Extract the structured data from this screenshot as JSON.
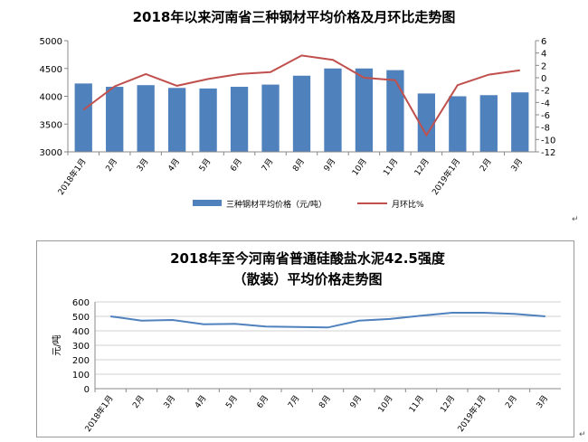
{
  "chart_data": [
    {
      "type": "bar+line",
      "title": "2018年以来河南省三种钢材平均价格及月环比走势图",
      "categories": [
        "2018年1月",
        "2月",
        "3月",
        "4月",
        "5月",
        "6月",
        "7月",
        "8月",
        "9月",
        "10月",
        "11月",
        "12月",
        "2019年1月",
        "2月",
        "3月"
      ],
      "series": [
        {
          "name": "三种钢材平均价格（元/吨）",
          "kind": "bar",
          "axis": "left",
          "color": "#4F81BD",
          "values": [
            4230,
            4170,
            4200,
            4150,
            4140,
            4170,
            4210,
            4370,
            4500,
            4500,
            4470,
            4050,
            4000,
            4020,
            4070
          ]
        },
        {
          "name": "月环比%",
          "kind": "line",
          "axis": "right",
          "color": "#C0504D",
          "values": [
            -5.2,
            -1.4,
            0.6,
            -1.3,
            -0.2,
            0.6,
            0.9,
            3.6,
            2.9,
            0.0,
            -0.4,
            -9.3,
            -1.2,
            0.5,
            1.2
          ]
        }
      ],
      "ylim_left": [
        3000,
        5000
      ],
      "yticks_left": [
        "3000",
        "3500",
        "4000",
        "4500",
        "5000"
      ],
      "ylim_right": [
        -12,
        6
      ],
      "yticks_right": [
        "6",
        "4",
        "2",
        "0",
        "-2",
        "-4",
        "-6",
        "-8",
        "-10",
        "-12"
      ],
      "grid": false,
      "legend": "bottom"
    },
    {
      "type": "line",
      "title_line1": "2018年至今河南省普通硅酸盐水泥42.5强度",
      "title_line2": "（散装）平均价格走势图",
      "categories": [
        "2018年1月",
        "2月",
        "3月",
        "4月",
        "5月",
        "6月",
        "7月",
        "8月",
        "9月",
        "10月",
        "11月",
        "12月",
        "2019年1月",
        "2月",
        "3月"
      ],
      "series": [
        {
          "kind": "line",
          "color": "#4F81BD",
          "values": [
            500,
            470,
            475,
            445,
            448,
            430,
            427,
            423,
            470,
            482,
            505,
            525,
            525,
            517,
            500
          ]
        }
      ],
      "ylabel": "元/吨",
      "ylim": [
        0,
        600
      ],
      "yticks": [
        "0",
        "100",
        "200",
        "300",
        "400",
        "500",
        "600"
      ],
      "grid": true,
      "legend": "none"
    }
  ],
  "marks": {
    "paragraph": "↵"
  }
}
